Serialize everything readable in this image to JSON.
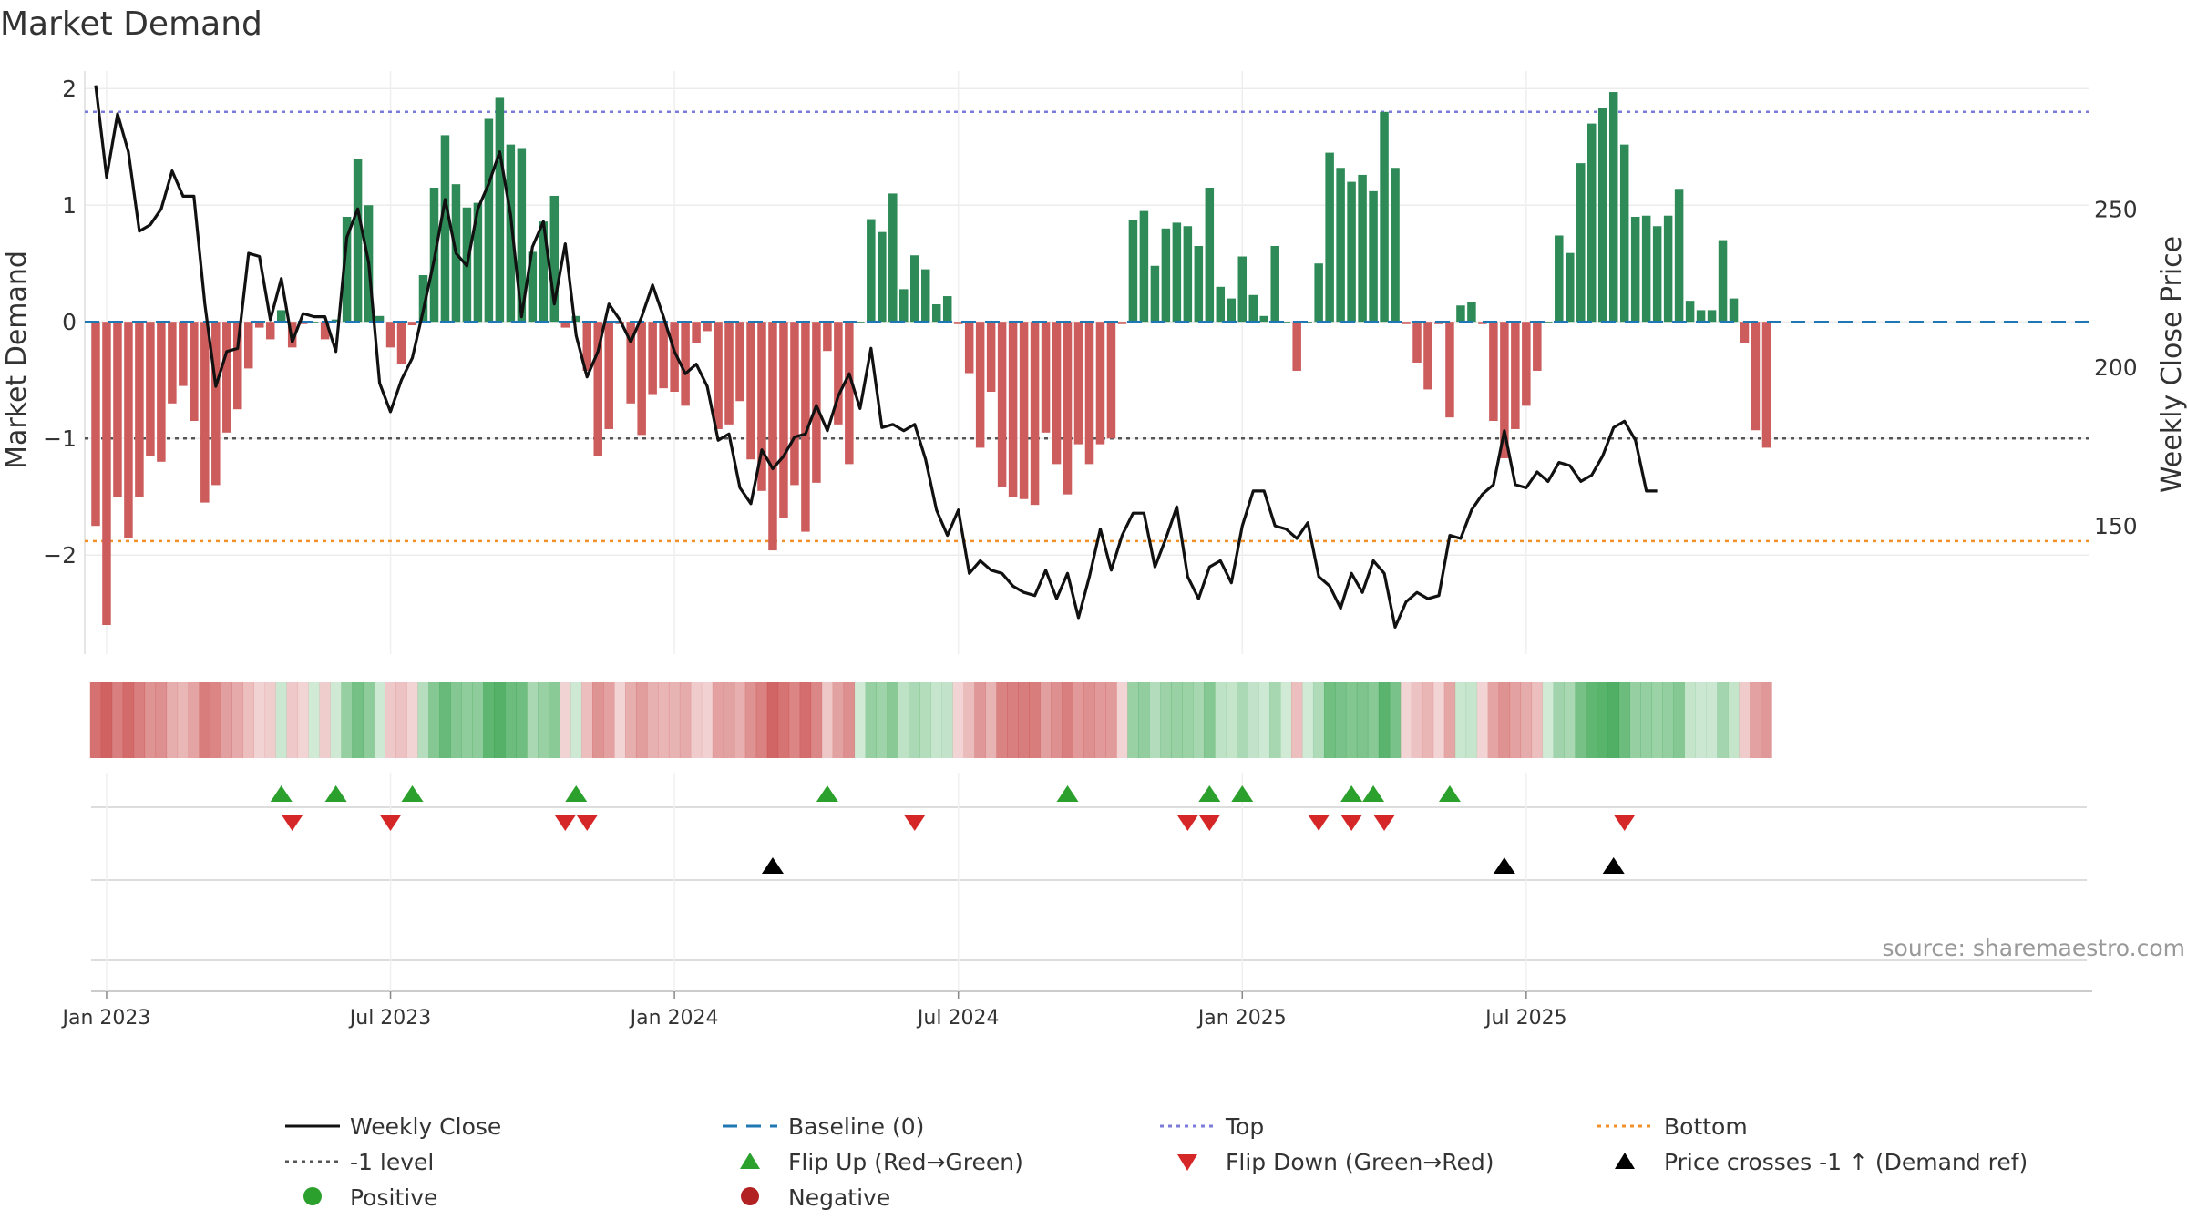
{
  "title": "Market Demand",
  "chart_data": {
    "type": "bar",
    "title": "Market Demand",
    "ylabel_left": "Market Demand",
    "ylabel_right": "Weekly Close Price",
    "source": "source: sharemaestro.com",
    "left_axis": {
      "ylim": [
        -2.85,
        2.15
      ],
      "ticks": [
        2,
        1,
        0,
        -1,
        -2
      ],
      "tick_labels": [
        "2",
        "1",
        "0",
        "−1",
        "−2"
      ]
    },
    "right_axis": {
      "ylim": [
        109.5,
        293.5
      ],
      "ticks": [
        250,
        200,
        150
      ],
      "tick_labels": [
        "250",
        "200",
        "150"
      ]
    },
    "reference_lines": {
      "top": 1.8,
      "minus_one": -1.0,
      "bottom": -1.88,
      "baseline": 0
    },
    "x_start_date": "2022-12-25",
    "x_week_range": [
      -1,
      182.5
    ],
    "x_ticks": [
      {
        "label": "Jan 2023",
        "week": 1
      },
      {
        "label": "Jul 2023",
        "week": 27
      },
      {
        "label": "Jan 2024",
        "week": 53
      },
      {
        "label": "Jul 2024",
        "week": 79
      },
      {
        "label": "Jan 2025",
        "week": 105
      },
      {
        "label": "Jul 2025",
        "week": 131
      }
    ],
    "demand": [
      -1.75,
      -2.6,
      -1.5,
      -1.85,
      -1.5,
      -1.15,
      -1.2,
      -0.7,
      -0.55,
      -0.85,
      -1.55,
      -1.4,
      -0.95,
      -0.75,
      -0.4,
      -0.05,
      -0.15,
      0.1,
      -0.22,
      -0.02,
      0.0,
      -0.15,
      0.02,
      0.9,
      1.4,
      1.0,
      0.05,
      -0.22,
      -0.36,
      -0.03,
      0.4,
      1.15,
      1.6,
      1.18,
      0.98,
      1.02,
      1.74,
      1.92,
      1.52,
      1.49,
      0.6,
      0.86,
      1.08,
      -0.05,
      0.05,
      -0.42,
      -1.15,
      -0.92,
      -0.02,
      -0.7,
      -0.97,
      -0.62,
      -0.57,
      -0.6,
      -0.72,
      -0.18,
      -0.08,
      -0.92,
      -0.88,
      -0.68,
      -1.18,
      -1.45,
      -1.96,
      -1.68,
      -1.4,
      -1.8,
      -1.38,
      -0.25,
      -0.88,
      -1.22,
      0.0,
      0.88,
      0.77,
      1.1,
      0.28,
      0.57,
      0.45,
      0.15,
      0.22,
      -0.02,
      -0.44,
      -1.08,
      -0.6,
      -1.42,
      -1.5,
      -1.52,
      -1.57,
      -0.95,
      -1.22,
      -1.48,
      -1.05,
      -1.22,
      -1.05,
      -1.0,
      -0.02,
      0.87,
      0.95,
      0.48,
      0.8,
      0.85,
      0.82,
      0.65,
      1.15,
      0.3,
      0.2,
      0.56,
      0.23,
      0.05,
      0.65,
      0.0,
      -0.42,
      0.0,
      0.5,
      1.45,
      1.32,
      1.2,
      1.26,
      1.12,
      1.8,
      1.32,
      -0.02,
      -0.35,
      -0.58,
      -0.02,
      -0.82,
      0.14,
      0.17,
      -0.02,
      -0.85,
      -1.17,
      -0.92,
      -0.72,
      -0.42,
      0.0,
      0.74,
      0.59,
      1.36,
      1.7,
      1.83,
      1.97,
      1.52,
      0.9,
      0.91,
      0.82,
      0.91,
      1.14,
      0.18,
      0.1,
      0.1,
      0.7,
      0.2,
      -0.18,
      -0.93,
      -1.08
    ],
    "weekly_close": [
      289,
      260,
      280,
      268,
      243,
      245,
      250,
      262,
      254,
      254,
      220,
      194,
      205,
      206,
      236,
      235,
      215,
      228,
      208,
      217,
      216,
      216,
      205,
      241,
      250,
      233,
      195,
      186,
      196,
      203,
      218,
      234,
      253,
      236,
      232,
      250,
      258,
      268,
      248,
      216,
      238,
      246,
      220,
      239,
      210,
      197,
      205,
      220,
      215,
      208,
      216,
      226,
      216,
      205,
      198,
      201,
      194,
      177,
      179,
      162,
      157,
      174,
      168,
      172,
      178,
      179,
      188,
      180,
      191,
      198,
      187,
      206,
      181,
      182,
      180,
      182,
      171,
      155,
      147,
      155,
      135,
      139,
      136,
      135,
      131,
      129,
      128,
      136,
      127,
      135,
      121,
      134,
      149,
      136,
      147,
      154,
      154,
      137,
      146,
      156,
      134,
      127,
      137,
      139,
      132,
      150,
      161,
      161,
      150,
      149,
      146,
      151,
      134,
      131,
      124,
      135,
      129,
      139,
      135,
      118,
      126,
      129,
      127,
      128,
      147,
      146,
      155,
      160,
      163,
      180,
      163,
      162,
      167,
      164,
      170,
      169,
      164,
      166,
      172,
      181,
      183,
      177,
      161,
      161
    ],
    "flip_up_weeks": [
      17,
      22,
      29,
      44,
      67,
      89,
      102,
      105,
      115,
      117,
      124
    ],
    "flip_down_weeks": [
      18,
      27,
      43,
      45,
      75,
      100,
      102,
      112,
      115,
      118,
      140
    ],
    "cross_weeks": [
      62,
      129,
      139
    ],
    "bands": {
      "rows": 3
    }
  },
  "colors": {
    "green": "#2e8b57",
    "red": "#cd5c5c",
    "line": "#111111",
    "baseline": "#1f77b4",
    "top": "#7b7bd9",
    "level": "#555555",
    "bottom": "#f0922b",
    "flip_up": "#2ca02c",
    "flip_down": "#d62728",
    "cross": "#000000"
  },
  "legend": {
    "weekly_close": "Weekly Close",
    "baseline": "Baseline (0)",
    "top": "Top",
    "bottom": "Bottom",
    "minus_one": "-1 level",
    "flip_up": "Flip Up (Red→Green)",
    "flip_down": "Flip Down (Green→Red)",
    "cross": "Price crosses -1 ↑ (Demand ref)",
    "positive": "Positive",
    "negative": "Negative"
  }
}
